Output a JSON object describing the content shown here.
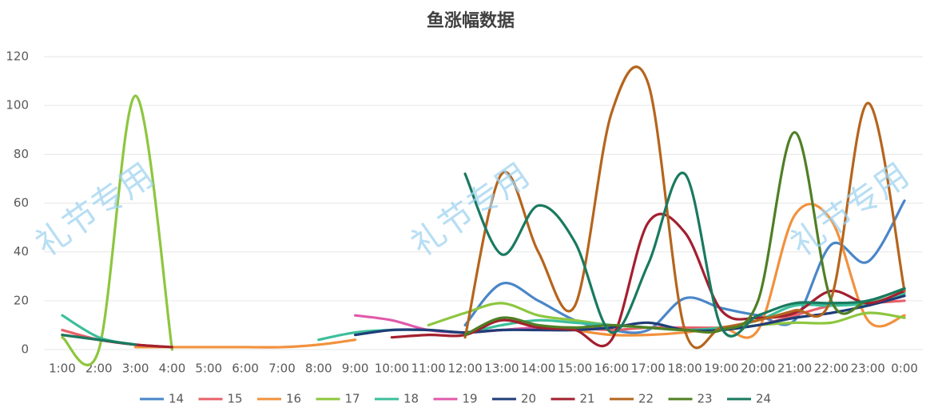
{
  "chart_data": {
    "type": "line",
    "title": "鱼涨幅数据",
    "watermarks": [
      "礼节专用",
      "礼节专用",
      "礼节专用"
    ],
    "categories": [
      "1:00",
      "2:00",
      "3:00",
      "4:00",
      "5:00",
      "6:00",
      "7:00",
      "8:00",
      "9:00",
      "10:00",
      "11:00",
      "12:00",
      "13:00",
      "14:00",
      "15:00",
      "16:00",
      "17:00",
      "18:00",
      "19:00",
      "20:00",
      "21:00",
      "22:00",
      "23:00",
      "0:00"
    ],
    "ylim": [
      0,
      120
    ],
    "yticks": [
      0,
      20,
      40,
      60,
      80,
      100,
      120
    ],
    "grid": true,
    "legend": "bottom",
    "smooth": true,
    "series": [
      {
        "name": "14",
        "color": "#4a86c8",
        "values": [
          null,
          null,
          null,
          null,
          null,
          null,
          null,
          null,
          null,
          null,
          null,
          10,
          27,
          20,
          12,
          8,
          8,
          21,
          17,
          14,
          12,
          43,
          36,
          61
        ]
      },
      {
        "name": "15",
        "color": "#e8606a",
        "values": [
          8,
          4,
          2,
          1,
          null,
          null,
          null,
          null,
          null,
          null,
          null,
          7,
          8,
          9,
          9,
          8,
          9,
          9,
          9,
          10,
          14,
          18,
          19,
          20
        ]
      },
      {
        "name": "16",
        "color": "#f2913d",
        "values": [
          null,
          null,
          1,
          1,
          1,
          1,
          1,
          2,
          4,
          null,
          null,
          null,
          null,
          null,
          8,
          6,
          6,
          7,
          9,
          8,
          55,
          53,
          12,
          14
        ]
      },
      {
        "name": "17",
        "color": "#8dc63f",
        "values": [
          5,
          0,
          104,
          0,
          null,
          null,
          null,
          null,
          null,
          null,
          10,
          15,
          19,
          14,
          12,
          10,
          9,
          8,
          8,
          10,
          11,
          11,
          15,
          13
        ]
      },
      {
        "name": "18",
        "color": "#3cbf9b",
        "values": [
          14,
          5,
          2,
          null,
          null,
          null,
          null,
          4,
          7,
          8,
          8,
          7,
          10,
          12,
          11,
          10,
          9,
          8,
          9,
          12,
          18,
          18,
          19,
          23
        ]
      },
      {
        "name": "19",
        "color": "#e05aaa",
        "values": [
          null,
          null,
          null,
          null,
          null,
          null,
          null,
          null,
          14,
          12,
          8,
          7,
          8,
          9,
          null,
          null,
          null,
          null,
          null,
          null,
          null,
          null,
          null,
          null
        ]
      },
      {
        "name": "20",
        "color": "#1f3d78",
        "values": [
          null,
          null,
          null,
          null,
          null,
          null,
          null,
          null,
          6,
          8,
          8,
          7,
          8,
          8,
          8,
          9,
          11,
          8,
          8,
          10,
          13,
          15,
          18,
          22
        ]
      },
      {
        "name": "21",
        "color": "#a3202f",
        "values": [
          6,
          4,
          2,
          1,
          null,
          null,
          null,
          null,
          null,
          5,
          6,
          6,
          12,
          9,
          8,
          4,
          52,
          48,
          16,
          13,
          15,
          24,
          19,
          24
        ]
      },
      {
        "name": "22",
        "color": "#b5651d",
        "values": [
          null,
          null,
          null,
          null,
          null,
          null,
          null,
          null,
          null,
          null,
          null,
          5,
          72,
          40,
          18,
          97,
          109,
          8,
          9,
          12,
          16,
          21,
          101,
          24
        ]
      },
      {
        "name": "23",
        "color": "#4f7f24",
        "values": [
          null,
          null,
          null,
          null,
          null,
          null,
          null,
          null,
          null,
          null,
          null,
          6,
          13,
          10,
          9,
          10,
          9,
          8,
          8,
          20,
          89,
          20,
          20,
          25
        ]
      },
      {
        "name": "24",
        "color": "#197a5f",
        "values": [
          6,
          4,
          2,
          null,
          null,
          null,
          null,
          null,
          null,
          null,
          null,
          72,
          39,
          59,
          44,
          7,
          35,
          72,
          9,
          14,
          19,
          19,
          20,
          25
        ]
      }
    ]
  }
}
